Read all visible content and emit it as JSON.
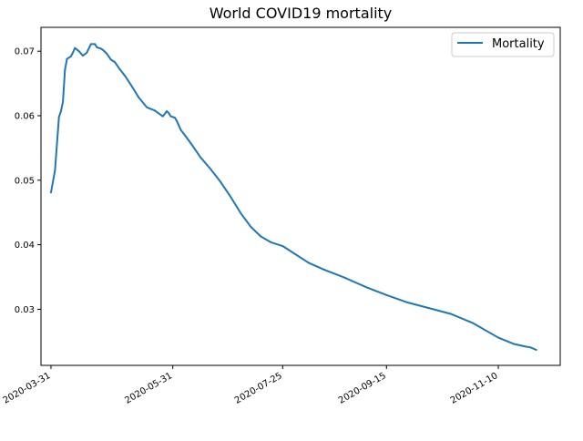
{
  "colors": {
    "line": "#1f77b4",
    "axis": "#000000",
    "background": "#ffffff",
    "legend_border": "#cccccc"
  },
  "chart_data": {
    "type": "line",
    "title": "World COVID19 mortality",
    "xlabel": "",
    "ylabel": "",
    "x_type": "date",
    "xlim": [
      "2020-03-26",
      "2020-12-11"
    ],
    "ylim": [
      0.0213,
      0.0737
    ],
    "x_ticks": [
      "2020-03-31",
      "2020-05-31",
      "2020-07-25",
      "2020-09-15",
      "2020-11-10"
    ],
    "y_ticks": [
      0.03,
      0.04,
      0.05,
      0.06,
      0.07
    ],
    "y_tick_labels": [
      "0.03",
      "0.04",
      "0.05",
      "0.06",
      "0.07"
    ],
    "grid": false,
    "legend_position": "top-right",
    "series": [
      {
        "name": "Mortality",
        "color": "#1f77b4",
        "x": [
          "2020-03-31",
          "2020-04-02",
          "2020-04-04",
          "2020-04-05",
          "2020-04-06",
          "2020-04-07",
          "2020-04-08",
          "2020-04-10",
          "2020-04-11",
          "2020-04-12",
          "2020-04-14",
          "2020-04-16",
          "2020-04-18",
          "2020-04-20",
          "2020-04-22",
          "2020-04-23",
          "2020-04-25",
          "2020-04-26",
          "2020-04-28",
          "2020-04-30",
          "2020-05-02",
          "2020-05-04",
          "2020-05-07",
          "2020-05-10",
          "2020-05-14",
          "2020-05-18",
          "2020-05-22",
          "2020-05-26",
          "2020-05-28",
          "2020-05-29",
          "2020-05-30",
          "2020-06-01",
          "2020-06-02",
          "2020-06-03",
          "2020-06-04",
          "2020-06-06",
          "2020-06-10",
          "2020-06-14",
          "2020-06-19",
          "2020-06-24",
          "2020-06-29",
          "2020-07-04",
          "2020-07-09",
          "2020-07-14",
          "2020-07-19",
          "2020-07-25",
          "2020-07-31",
          "2020-08-07",
          "2020-08-15",
          "2020-08-25",
          "2020-09-05",
          "2020-09-15",
          "2020-09-25",
          "2020-10-06",
          "2020-10-17",
          "2020-10-28",
          "2020-11-10",
          "2020-11-18",
          "2020-11-24",
          "2020-11-26",
          "2020-11-29"
        ],
        "values": [
          0.0481,
          0.0515,
          0.0598,
          0.0607,
          0.0622,
          0.0671,
          0.0688,
          0.0692,
          0.0698,
          0.0705,
          0.07,
          0.0693,
          0.0698,
          0.0711,
          0.0711,
          0.0706,
          0.0704,
          0.0702,
          0.0696,
          0.0687,
          0.0683,
          0.0674,
          0.0662,
          0.0648,
          0.0628,
          0.0613,
          0.0608,
          0.0599,
          0.0607,
          0.0604,
          0.0599,
          0.0597,
          0.0592,
          0.0585,
          0.0578,
          0.057,
          0.0553,
          0.0535,
          0.0517,
          0.0497,
          0.0474,
          0.0449,
          0.0428,
          0.0413,
          0.0404,
          0.0398,
          0.0386,
          0.0372,
          0.0361,
          0.0349,
          0.0334,
          0.0322,
          0.0311,
          0.0302,
          0.0293,
          0.0279,
          0.0256,
          0.0246,
          0.0242,
          0.0241,
          0.0237
        ]
      }
    ]
  }
}
